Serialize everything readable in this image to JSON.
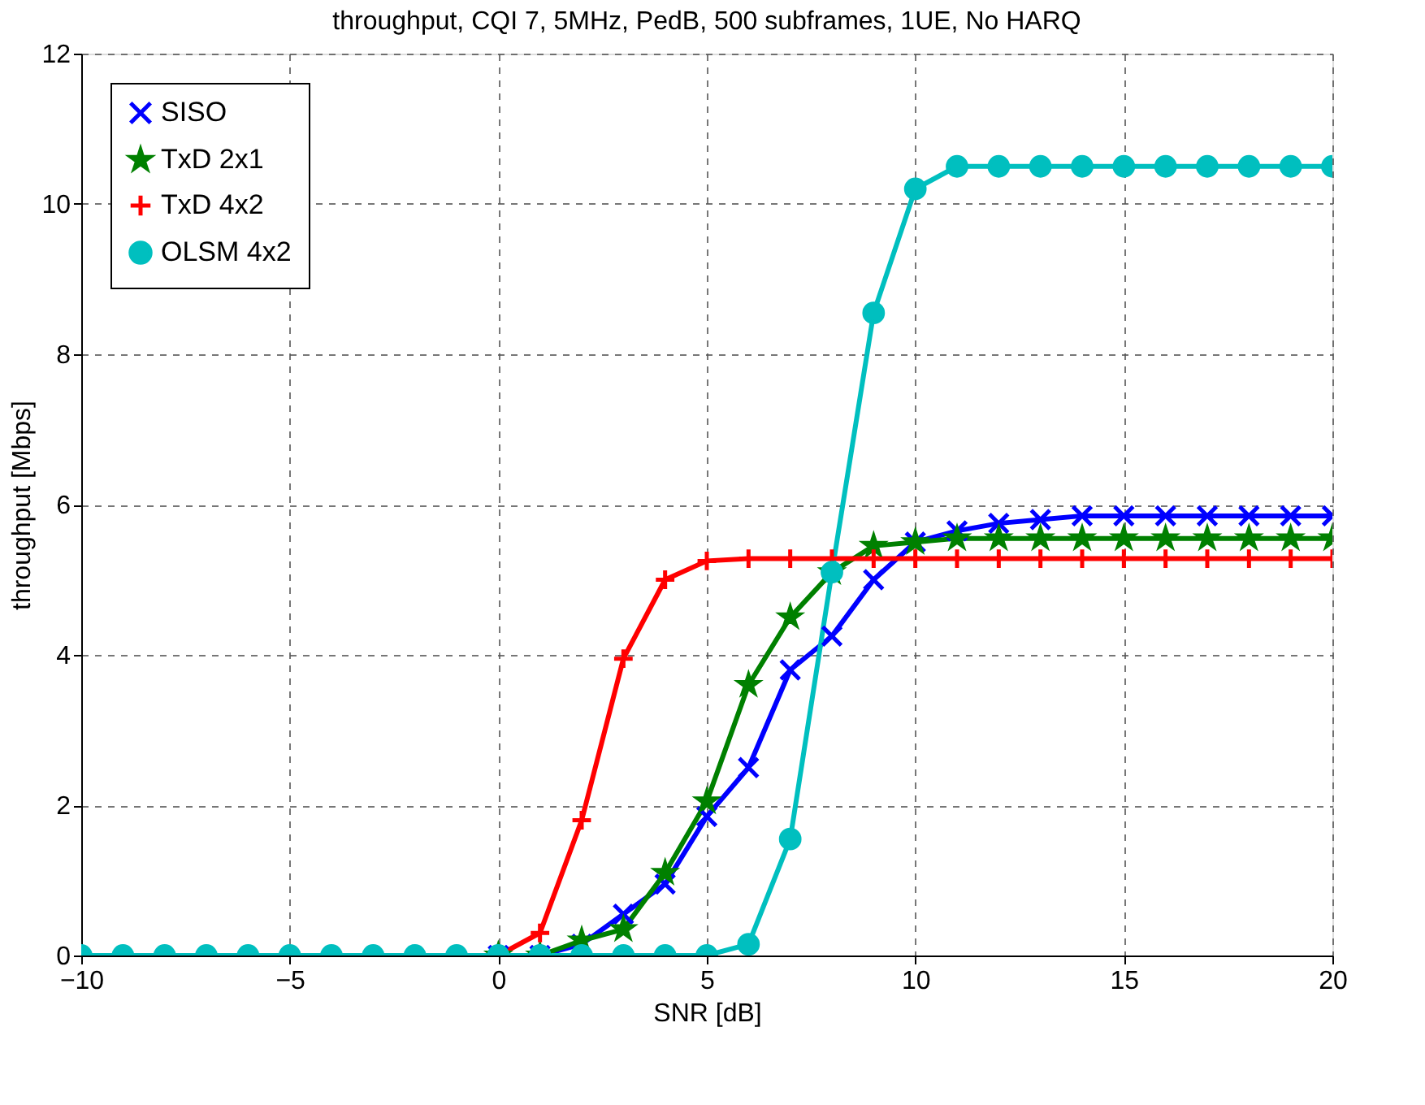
{
  "chart_data": {
    "type": "line",
    "title": "throughput, CQI 7, 5MHz, PedB, 500 subframes, 1UE, No HARQ",
    "xlabel": "SNR [dB]",
    "ylabel": "throughput [Mbps]",
    "x": [
      -10,
      -9,
      -8,
      -7,
      -6,
      -5,
      -4,
      -3,
      -2,
      -1,
      0,
      1,
      2,
      3,
      4,
      5,
      6,
      7,
      8,
      9,
      10,
      11,
      12,
      13,
      14,
      15,
      16,
      17,
      18,
      19,
      20
    ],
    "series": [
      {
        "name": "SISO",
        "color": "#0000ff",
        "marker": "cross",
        "values": [
          null,
          null,
          null,
          null,
          null,
          null,
          null,
          null,
          null,
          null,
          0,
          0,
          0.15,
          0.55,
          0.95,
          1.85,
          2.5,
          3.8,
          4.25,
          5.0,
          5.5,
          5.65,
          5.75,
          5.8,
          5.85,
          5.85,
          5.85,
          5.85,
          5.85,
          5.85,
          5.85
        ]
      },
      {
        "name": "TxD 2x1",
        "color": "#008000",
        "marker": "star",
        "values": [
          null,
          null,
          null,
          null,
          null,
          null,
          null,
          null,
          null,
          null,
          0,
          0,
          0.2,
          0.35,
          1.1,
          2.05,
          3.6,
          4.5,
          5.1,
          5.45,
          5.5,
          5.55,
          5.55,
          5.55,
          5.55,
          5.55,
          5.55,
          5.55,
          5.55,
          5.55,
          5.55
        ]
      },
      {
        "name": "TxD 4x2",
        "color": "#ff0000",
        "marker": "plus",
        "values": [
          null,
          null,
          null,
          null,
          null,
          null,
          null,
          null,
          null,
          0,
          0,
          0.3,
          1.8,
          3.95,
          5.0,
          5.25,
          5.28,
          5.28,
          5.28,
          5.28,
          5.28,
          5.28,
          5.28,
          5.28,
          5.28,
          5.28,
          5.28,
          5.28,
          5.28,
          5.28,
          5.28
        ]
      },
      {
        "name": "OLSM 4x2",
        "color": "#00bfbf",
        "marker": "circle",
        "values": [
          0,
          0,
          0,
          0,
          0,
          0,
          0,
          0,
          0,
          0,
          0,
          0,
          0,
          0,
          0,
          0,
          0.15,
          1.55,
          5.1,
          8.55,
          10.2,
          10.5,
          10.5,
          10.5,
          10.5,
          10.5,
          10.5,
          10.5,
          10.5,
          10.5,
          10.5
        ]
      }
    ],
    "xlim": [
      -10,
      20
    ],
    "xticks": [
      -10,
      -5,
      0,
      5,
      10,
      15,
      20
    ],
    "ylim": [
      0,
      12
    ],
    "yticks": [
      0,
      2,
      4,
      6,
      8,
      10,
      12
    ],
    "grid": true,
    "legend": "top left",
    "line_style": "solid"
  }
}
